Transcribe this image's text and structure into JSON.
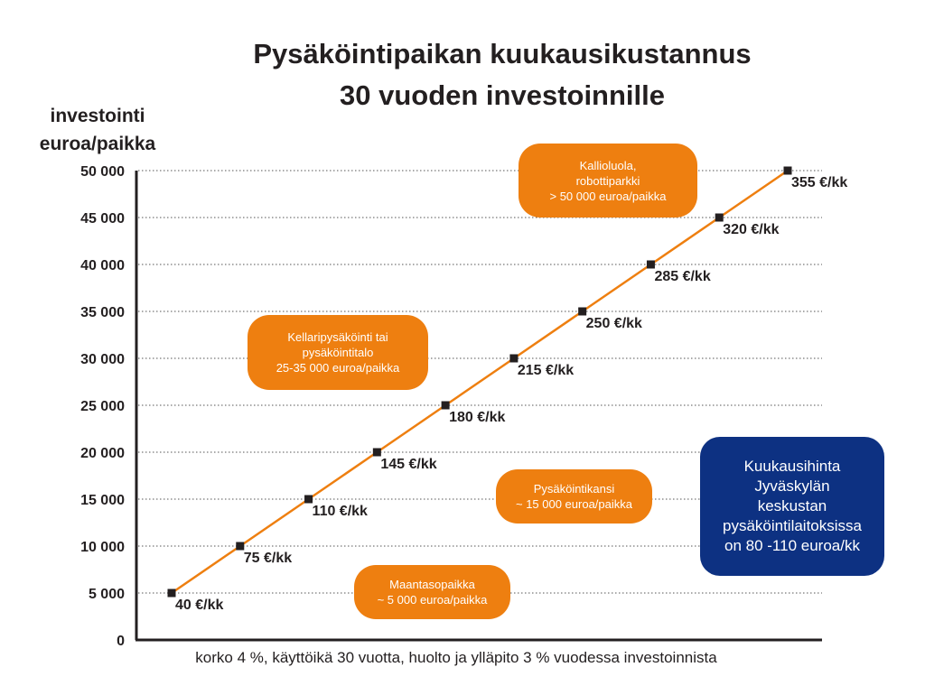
{
  "chart_data": {
    "type": "line",
    "title": [
      "Pysäköintipaikan kuukausikustannus",
      "30 vuoden investoinnille"
    ],
    "ylabel": [
      "investointi",
      "euroa/paikka"
    ],
    "xlabel": "",
    "ylim": [
      0,
      50000
    ],
    "y_ticks": [
      "0",
      "5 000",
      "10 000",
      "15 000",
      "20 000",
      "25 000",
      "30 000",
      "35 000",
      "40 000",
      "45 000",
      "50 000"
    ],
    "grid": "horizontal dotted",
    "series": [
      {
        "values": [
          5000,
          10000,
          15000,
          20000,
          25000,
          30000,
          35000,
          40000,
          45000,
          50000
        ],
        "point_labels": [
          "40 €/kk",
          "75 €/kk",
          "110 €/kk",
          "145 €/kk",
          "180 €/kk",
          "215 €/kk",
          "250 €/kk",
          "285 €/kk",
          "320 €/kk",
          "355 €/kk"
        ],
        "color": "#ee7f10",
        "marker_color": "#231f20"
      }
    ],
    "annotations": [
      {
        "lines": [
          "Kallioluola,",
          "robottiparkki",
          "> 50 000 euroa/paikka"
        ],
        "color": "#ee7f10"
      },
      {
        "lines": [
          "Kellaripysäköinti tai",
          "pysäköintitalo",
          "25-35 000 euroa/paikka"
        ],
        "color": "#ee7f10"
      },
      {
        "lines": [
          "Pysäköintikansi",
          "~ 15 000 euroa/paikka"
        ],
        "color": "#ee7f10"
      },
      {
        "lines": [
          "Maantasopaikka",
          "~ 5 000 euroa/paikka"
        ],
        "color": "#ee7f10"
      },
      {
        "lines": [
          "Kuukausihinta",
          "Jyväskylän",
          "keskustan",
          "pysäköintilaitoksissa",
          "on 80 -110 euroa/kk"
        ],
        "color": "#0d3182"
      }
    ],
    "footnote": "korko 4 %, käyttöikä 30 vuotta, huolto ja ylläpito 3 % vuodessa investoinnista"
  }
}
